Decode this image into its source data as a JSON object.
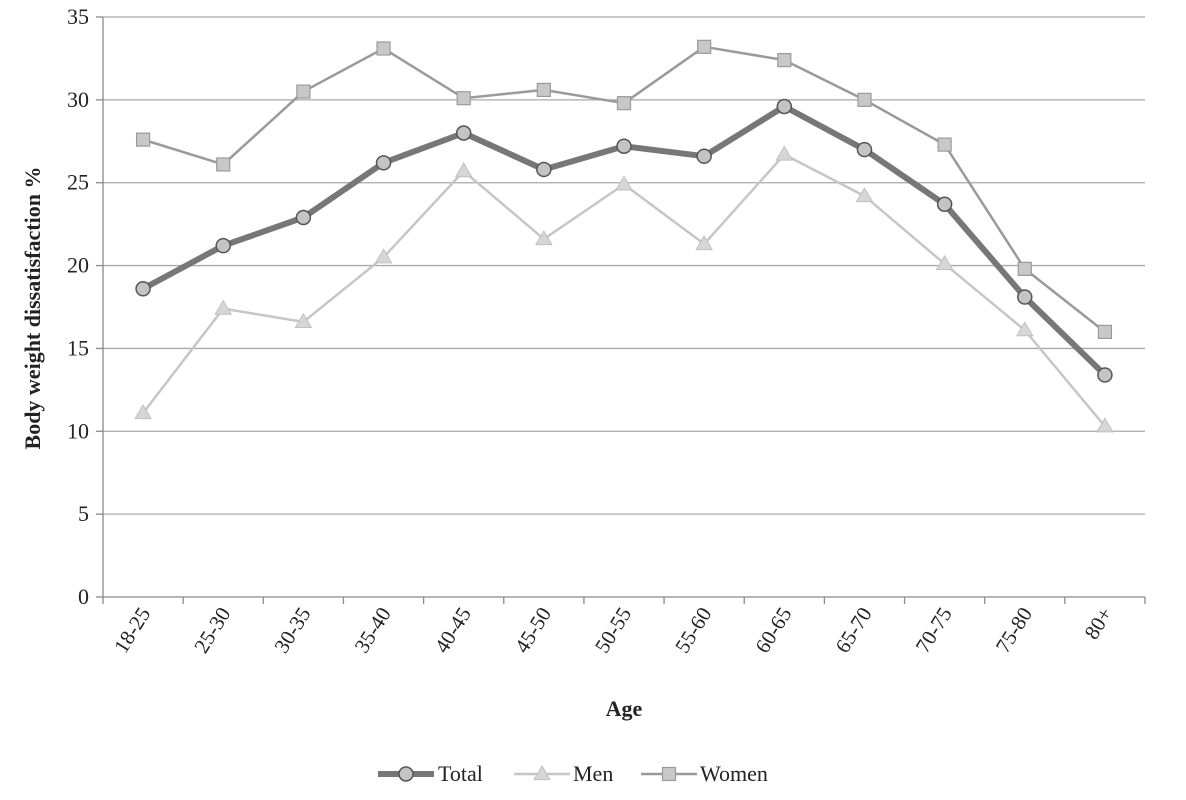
{
  "chart_data": {
    "type": "line",
    "title": "",
    "xlabel": "Age",
    "ylabel": "Body weight dissatisfaction %",
    "categories": [
      "18-25",
      "25-30",
      "30-35",
      "35-40",
      "40-45",
      "45-50",
      "50-55",
      "55-60",
      "60-65",
      "65-70",
      "70-75",
      "75-80",
      "80+"
    ],
    "ylim": [
      0,
      35
    ],
    "yticks": [
      0,
      5,
      10,
      15,
      20,
      25,
      30,
      35
    ],
    "grid": true,
    "legend_position": "bottom",
    "series": [
      {
        "name": "Total",
        "values": [
          18.6,
          21.2,
          22.9,
          26.2,
          28.0,
          25.8,
          27.2,
          26.6,
          29.6,
          27.0,
          23.7,
          18.1,
          13.4
        ],
        "color": "#777777",
        "marker": "circle"
      },
      {
        "name": "Men",
        "values": [
          11.1,
          17.4,
          16.6,
          20.5,
          25.7,
          21.6,
          24.9,
          21.3,
          26.7,
          24.2,
          20.1,
          16.1,
          10.3
        ],
        "color": "#c6c6c6",
        "marker": "triangle"
      },
      {
        "name": "Women",
        "values": [
          27.6,
          26.1,
          30.5,
          33.1,
          30.1,
          30.6,
          29.8,
          33.2,
          32.4,
          30.0,
          27.3,
          19.8,
          16.0
        ],
        "color": "#9a9a9a",
        "marker": "square"
      }
    ]
  }
}
